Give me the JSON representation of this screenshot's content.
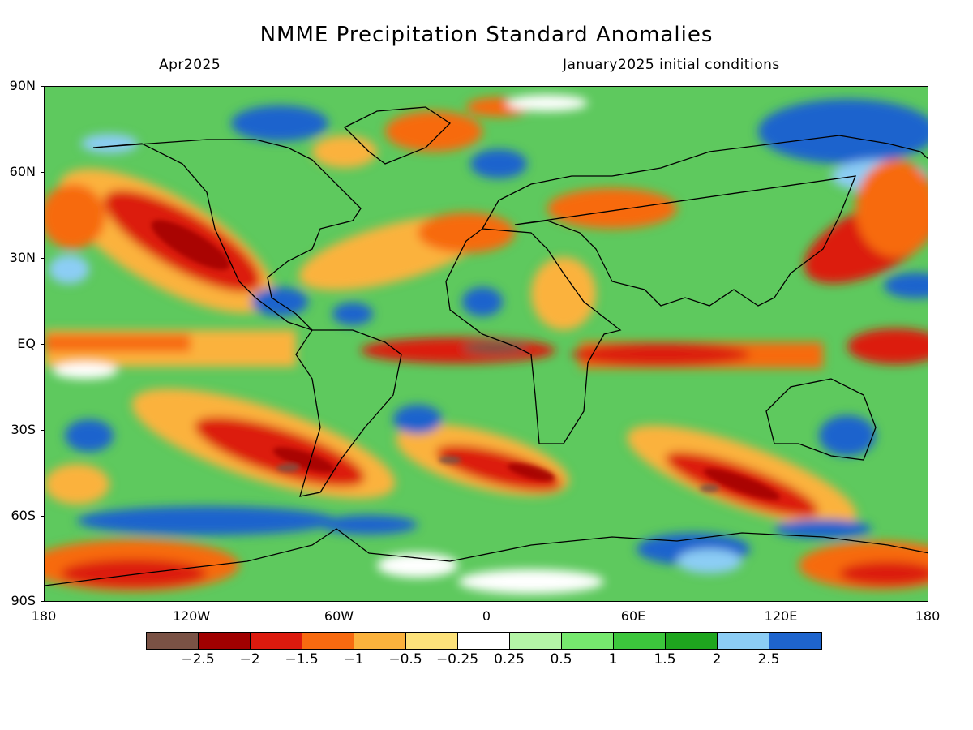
{
  "title": "NMME Precipitation Standard Anomalies",
  "subtitle_left": "Apr2025",
  "subtitle_right": "January2025 initial conditions",
  "y_axis_labels": [
    "90N",
    "60N",
    "30N",
    "EQ",
    "30S",
    "60S",
    "90S"
  ],
  "x_axis_labels": [
    "180",
    "120W",
    "60W",
    "0",
    "60E",
    "120E",
    "180"
  ],
  "colorbar": {
    "colors": [
      "#7a5245",
      "#a00000",
      "#dc1a0e",
      "#f76a10",
      "#fbb23c",
      "#fde27a",
      "#ffffff",
      "#b4f5a6",
      "#76e96e",
      "#3cc63c",
      "#1ea51e",
      "#8ccdf5",
      "#1e64cd"
    ],
    "labels": [
      "−2.5",
      "−2",
      "−1.5",
      "−1",
      "−0.5",
      "−0.25",
      "0.25",
      "0.5",
      "1",
      "1.5",
      "2",
      "2.5"
    ]
  }
}
